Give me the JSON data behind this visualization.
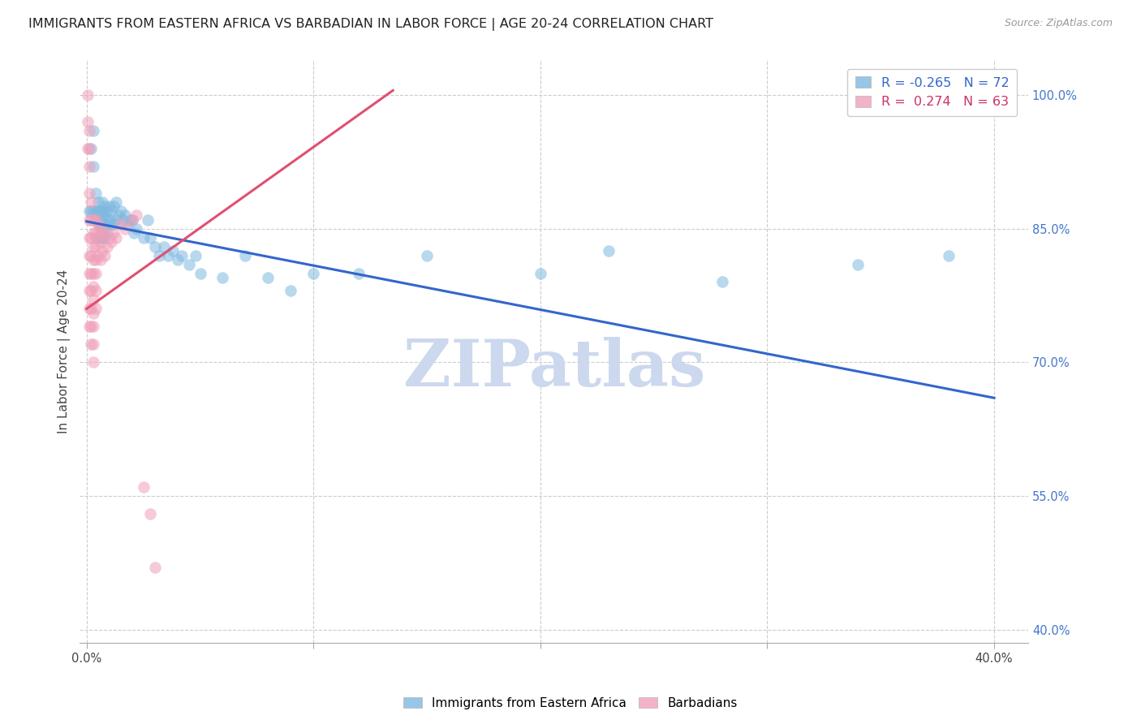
{
  "title": "IMMIGRANTS FROM EASTERN AFRICA VS BARBADIAN IN LABOR FORCE | AGE 20-24 CORRELATION CHART",
  "source": "Source: ZipAtlas.com",
  "ylabel": "In Labor Force | Age 20-24",
  "right_ytick_labels": [
    "40.0%",
    "55.0%",
    "70.0%",
    "85.0%",
    "100.0%"
  ],
  "right_ytick_values": [
    0.4,
    0.55,
    0.7,
    0.85,
    1.0
  ],
  "xtick_labels": [
    "0.0%",
    "",
    "",
    "",
    "40.0%"
  ],
  "xtick_values": [
    0.0,
    0.1,
    0.2,
    0.3,
    0.4
  ],
  "ylim": [
    0.385,
    1.04
  ],
  "xlim": [
    -0.003,
    0.415
  ],
  "watermark": "ZIPatlas",
  "watermark_color": "#ccd8ee",
  "blue_color": "#7fb8e0",
  "pink_color": "#f0a0b8",
  "blue_line_color": "#3366cc",
  "pink_line_color": "#e05070",
  "title_fontsize": 11.5,
  "axis_label_fontsize": 11,
  "tick_fontsize": 10.5,
  "blue_scatter_x": [
    0.001,
    0.002,
    0.002,
    0.003,
    0.003,
    0.003,
    0.004,
    0.004,
    0.004,
    0.004,
    0.005,
    0.005,
    0.005,
    0.005,
    0.006,
    0.006,
    0.006,
    0.006,
    0.007,
    0.007,
    0.007,
    0.007,
    0.007,
    0.008,
    0.008,
    0.008,
    0.008,
    0.009,
    0.009,
    0.009,
    0.01,
    0.01,
    0.011,
    0.011,
    0.012,
    0.012,
    0.013,
    0.013,
    0.014,
    0.015,
    0.016,
    0.017,
    0.018,
    0.019,
    0.02,
    0.021,
    0.022,
    0.025,
    0.027,
    0.028,
    0.03,
    0.032,
    0.034,
    0.036,
    0.038,
    0.04,
    0.042,
    0.045,
    0.048,
    0.05,
    0.06,
    0.07,
    0.08,
    0.09,
    0.1,
    0.12,
    0.15,
    0.2,
    0.23,
    0.28,
    0.34,
    0.38
  ],
  "blue_scatter_y": [
    0.87,
    0.94,
    0.87,
    0.96,
    0.92,
    0.87,
    0.89,
    0.87,
    0.86,
    0.84,
    0.88,
    0.87,
    0.855,
    0.84,
    0.87,
    0.86,
    0.85,
    0.84,
    0.88,
    0.87,
    0.86,
    0.85,
    0.84,
    0.875,
    0.865,
    0.855,
    0.84,
    0.87,
    0.86,
    0.845,
    0.875,
    0.86,
    0.87,
    0.855,
    0.875,
    0.855,
    0.88,
    0.86,
    0.865,
    0.87,
    0.86,
    0.865,
    0.855,
    0.86,
    0.86,
    0.845,
    0.85,
    0.84,
    0.86,
    0.84,
    0.83,
    0.82,
    0.83,
    0.82,
    0.825,
    0.815,
    0.82,
    0.81,
    0.82,
    0.8,
    0.795,
    0.82,
    0.795,
    0.78,
    0.8,
    0.8,
    0.82,
    0.8,
    0.825,
    0.79,
    0.81,
    0.82
  ],
  "pink_scatter_x": [
    0.0005,
    0.0005,
    0.0005,
    0.001,
    0.001,
    0.001,
    0.001,
    0.001,
    0.001,
    0.001,
    0.001,
    0.001,
    0.001,
    0.001,
    0.002,
    0.002,
    0.002,
    0.002,
    0.002,
    0.002,
    0.002,
    0.002,
    0.002,
    0.003,
    0.003,
    0.003,
    0.003,
    0.003,
    0.003,
    0.003,
    0.003,
    0.003,
    0.003,
    0.003,
    0.004,
    0.004,
    0.004,
    0.004,
    0.004,
    0.004,
    0.004,
    0.005,
    0.005,
    0.005,
    0.006,
    0.006,
    0.006,
    0.007,
    0.007,
    0.008,
    0.008,
    0.009,
    0.01,
    0.011,
    0.012,
    0.013,
    0.015,
    0.017,
    0.02,
    0.022,
    0.025,
    0.028,
    0.03
  ],
  "pink_scatter_y": [
    1.0,
    0.97,
    0.94,
    0.96,
    0.94,
    0.92,
    0.89,
    0.86,
    0.84,
    0.82,
    0.8,
    0.78,
    0.76,
    0.74,
    0.88,
    0.86,
    0.84,
    0.82,
    0.8,
    0.78,
    0.76,
    0.74,
    0.72,
    0.86,
    0.845,
    0.83,
    0.815,
    0.8,
    0.785,
    0.77,
    0.755,
    0.74,
    0.72,
    0.7,
    0.86,
    0.845,
    0.83,
    0.815,
    0.8,
    0.78,
    0.76,
    0.855,
    0.84,
    0.82,
    0.85,
    0.835,
    0.815,
    0.845,
    0.825,
    0.845,
    0.82,
    0.83,
    0.84,
    0.835,
    0.845,
    0.84,
    0.855,
    0.85,
    0.86,
    0.865,
    0.56,
    0.53,
    0.47
  ],
  "blue_trend_x": [
    0.0,
    0.4
  ],
  "blue_trend_y": [
    0.858,
    0.66
  ],
  "pink_trend_x": [
    0.0,
    0.135
  ],
  "pink_trend_y": [
    0.76,
    1.005
  ],
  "legend_blue_label": "R = -0.265   N = 72",
  "legend_pink_label": "R =  0.274   N = 63",
  "legend_blue_r": "-0.265",
  "legend_blue_n": "72",
  "legend_pink_r": "0.274",
  "legend_pink_n": "63"
}
